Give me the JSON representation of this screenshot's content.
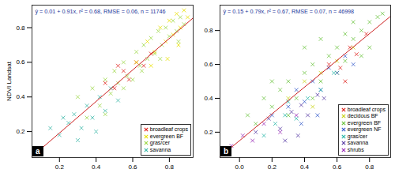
{
  "chart_data": [
    {
      "type": "scatter",
      "label": "a",
      "annotation": "ŷ = 0.01 + 0.91x, r² = 0.68, RMSE = 0.06, n = 11746",
      "y_label": "NDVI Landsat",
      "xlim": [
        0.05,
        0.93
      ],
      "ylim": [
        0.05,
        0.93
      ],
      "xticks": [
        0.2,
        0.4,
        0.6,
        0.8
      ],
      "yticks": [
        0.2,
        0.4,
        0.6,
        0.8
      ],
      "legend": "bottom-right",
      "fit": {
        "intercept": 0.01,
        "slope": 0.91,
        "color": "#cc2222"
      },
      "series": [
        {
          "name": "broadleaf crops",
          "color": "#e0241f",
          "marker": "x",
          "x": [
            0.45,
            0.5,
            0.55,
            0.58,
            0.62,
            0.66,
            0.7,
            0.52
          ],
          "values": [
            0.48,
            0.45,
            0.55,
            0.5,
            0.6,
            0.58,
            0.65,
            0.58
          ]
        },
        {
          "name": "evergreen BF",
          "color": "#e8e000",
          "marker": "x",
          "x": [
            0.62,
            0.68,
            0.72,
            0.75,
            0.78,
            0.8,
            0.82,
            0.84,
            0.86,
            0.88,
            0.9,
            0.85,
            0.79,
            0.7
          ],
          "values": [
            0.6,
            0.72,
            0.66,
            0.8,
            0.72,
            0.84,
            0.76,
            0.88,
            0.8,
            0.9,
            0.86,
            0.7,
            0.62,
            0.58
          ]
        },
        {
          "name": "gras/cer",
          "color": "#9ed84a",
          "marker": "x",
          "x": [
            0.3,
            0.35,
            0.38,
            0.42,
            0.45,
            0.48,
            0.5,
            0.52,
            0.55,
            0.57,
            0.6,
            0.62,
            0.64,
            0.66,
            0.68,
            0.7,
            0.72,
            0.74,
            0.76,
            0.78,
            0.8,
            0.82,
            0.84,
            0.86,
            0.88,
            0.55,
            0.65,
            0.75,
            0.85,
            0.45
          ],
          "values": [
            0.4,
            0.28,
            0.45,
            0.35,
            0.5,
            0.42,
            0.55,
            0.48,
            0.6,
            0.52,
            0.5,
            0.66,
            0.58,
            0.7,
            0.62,
            0.74,
            0.65,
            0.78,
            0.7,
            0.8,
            0.75,
            0.84,
            0.78,
            0.86,
            0.82,
            0.45,
            0.55,
            0.62,
            0.72,
            0.3
          ]
        },
        {
          "name": "savanna",
          "color": "#3cb8a8",
          "marker": "x",
          "x": [
            0.15,
            0.2,
            0.25,
            0.28,
            0.32,
            0.35,
            0.38,
            0.42,
            0.45,
            0.48,
            0.52,
            0.4,
            0.3,
            0.22
          ],
          "values": [
            0.22,
            0.18,
            0.25,
            0.3,
            0.22,
            0.35,
            0.28,
            0.4,
            0.32,
            0.45,
            0.38,
            0.2,
            0.15,
            0.28
          ]
        }
      ]
    },
    {
      "type": "scatter",
      "label": "b",
      "annotation": "ŷ = 0.15 + 0.79x, r² = 0.67, RMSE = 0.07, n = 46998",
      "xlim": [
        -0.12,
        0.93
      ],
      "ylim": [
        0.05,
        0.95
      ],
      "xticks": [
        {
          "value": 0,
          "label": "0.0"
        },
        0.2,
        0.4,
        0.6,
        0.8
      ],
      "yticks": [
        0.2,
        0.4,
        0.6,
        0.8
      ],
      "legend": "bottom-right",
      "fit": {
        "intercept": 0.15,
        "slope": 0.79,
        "color": "#cc2222"
      },
      "series": [
        {
          "name": "broadleaf crops",
          "color": "#e0241f",
          "marker": "x",
          "x": [
            0.55,
            0.62,
            0.68,
            0.72,
            0.78,
            0.65
          ],
          "values": [
            0.6,
            0.58,
            0.7,
            0.66,
            0.78,
            0.5
          ]
        },
        {
          "name": "decidous BF",
          "color": "#c9d41a",
          "marker": "x",
          "x": [
            0.3,
            0.4,
            0.5,
            0.6,
            0.7,
            0.45
          ],
          "values": [
            0.4,
            0.5,
            0.55,
            0.62,
            0.7,
            0.35
          ]
        },
        {
          "name": "evergreen BF",
          "color": "#6cc440",
          "marker": "x",
          "x": [
            0.05,
            0.1,
            0.15,
            0.2,
            0.25,
            0.3,
            0.35,
            0.4,
            0.45,
            0.5,
            0.55,
            0.6,
            0.65,
            0.7,
            0.75,
            0.8,
            0.85,
            0.88,
            0.3,
            0.4,
            0.5,
            0.6,
            0.7,
            0.8,
            0.2,
            0.45,
            0.65,
            0.75
          ],
          "values": [
            0.3,
            0.25,
            0.4,
            0.35,
            0.45,
            0.5,
            0.4,
            0.55,
            0.6,
            0.5,
            0.65,
            0.7,
            0.62,
            0.75,
            0.8,
            0.85,
            0.88,
            0.9,
            0.3,
            0.7,
            0.75,
            0.55,
            0.85,
            0.7,
            0.5,
            0.4,
            0.78,
            0.65
          ]
        },
        {
          "name": "evergreen NF",
          "color": "#3a5fcd",
          "marker": "x",
          "x": [
            0.2,
            0.3,
            0.35,
            0.4,
            0.45,
            0.5,
            0.55,
            0.6,
            0.65,
            0.7,
            0.38,
            0.48
          ],
          "values": [
            0.3,
            0.35,
            0.45,
            0.38,
            0.5,
            0.45,
            0.58,
            0.55,
            0.65,
            0.6,
            0.25,
            0.3
          ]
        },
        {
          "name": "gras/cer",
          "color": "#2ab7a9",
          "marker": "x",
          "x": [
            0.15,
            0.22,
            0.28,
            0.35,
            0.42,
            0.5,
            0.58,
            0.3
          ],
          "values": [
            0.18,
            0.25,
            0.3,
            0.28,
            0.4,
            0.45,
            0.55,
            0.38
          ]
        },
        {
          "name": "savanna",
          "color": "#5b3fa6",
          "marker": "x",
          "x": [
            0.1,
            0.18,
            0.25,
            0.32,
            0.38,
            0.42,
            0.48,
            0.52,
            0.28,
            0.36
          ],
          "values": [
            0.2,
            0.28,
            0.22,
            0.32,
            0.36,
            0.3,
            0.42,
            0.4,
            0.15,
            0.18
          ]
        },
        {
          "name": "shrubs",
          "color": "#9a2fb8",
          "marker": "x",
          "x": [
            -0.05,
            0.02,
            0.08,
            0.15,
            0.25,
            0.35
          ],
          "values": [
            0.12,
            0.18,
            0.15,
            0.25,
            0.2,
            0.3
          ]
        }
      ]
    }
  ]
}
